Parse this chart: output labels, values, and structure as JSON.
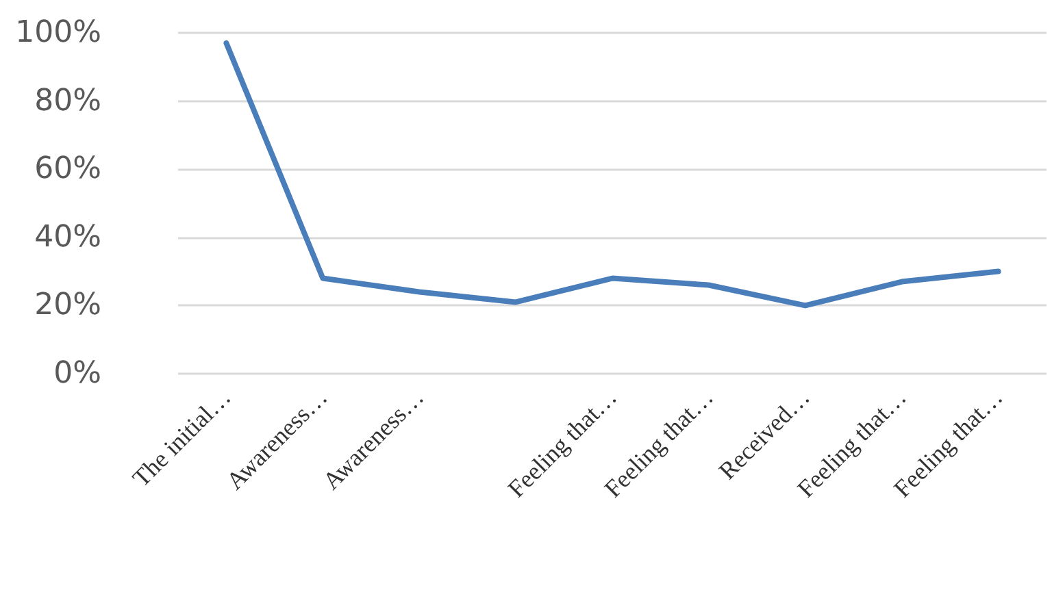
{
  "chart_data": {
    "type": "line",
    "categories": [
      "The initial…",
      "Awareness…",
      "Awareness…",
      null,
      "Feeling that…",
      "Feeling that…",
      "Received…",
      "Feeling that…",
      "Feeling that…"
    ],
    "series": [
      {
        "color": "#4a7ebb",
        "values": [
          97,
          28,
          24,
          21,
          28,
          26,
          20,
          27,
          30
        ]
      }
    ],
    "ylim": [
      0,
      100
    ],
    "yticks": [
      {
        "value": 0,
        "label": "0%"
      },
      {
        "value": 20,
        "label": "20%"
      },
      {
        "value": 40,
        "label": "40%"
      },
      {
        "value": 60,
        "label": "60%"
      },
      {
        "value": 80,
        "label": "80%"
      },
      {
        "value": 100,
        "label": "100%"
      }
    ],
    "grid": "y",
    "marker": "none",
    "line_style": "solid"
  }
}
